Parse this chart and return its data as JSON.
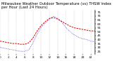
{
  "title": "Milwaukee Weather Outdoor Temperature (vs) THSW Index per Hour (Last 24 Hours)",
  "ylim": [
    22,
    78
  ],
  "xlim": [
    0,
    23
  ],
  "background_color": "#ffffff",
  "grid_color": "#aaaaaa",
  "temp_color": "#dd0000",
  "thsw_color": "#0000cc",
  "hours": [
    0,
    1,
    2,
    3,
    4,
    5,
    6,
    7,
    8,
    9,
    10,
    11,
    12,
    13,
    14,
    15,
    16,
    17,
    18,
    19,
    20,
    21,
    22,
    23
  ],
  "temp_values": [
    38,
    37,
    36,
    35,
    35,
    34,
    34,
    36,
    42,
    51,
    58,
    63,
    67,
    68,
    66,
    63,
    60,
    57,
    55,
    54,
    53,
    52,
    51,
    51
  ],
  "thsw_values": [
    30,
    29,
    28,
    27,
    26,
    25,
    25,
    27,
    36,
    47,
    56,
    61,
    66,
    70,
    67,
    62,
    55,
    50,
    46,
    43,
    41,
    40,
    38,
    37
  ],
  "ytick_positions": [
    25,
    30,
    35,
    40,
    45,
    50,
    55,
    60,
    65,
    70,
    75
  ],
  "xtick_positions": [
    0,
    2,
    4,
    6,
    8,
    10,
    12,
    14,
    16,
    18,
    20,
    22
  ],
  "title_fontsize": 3.8,
  "tick_fontsize": 3.0,
  "line_width": 0.7
}
